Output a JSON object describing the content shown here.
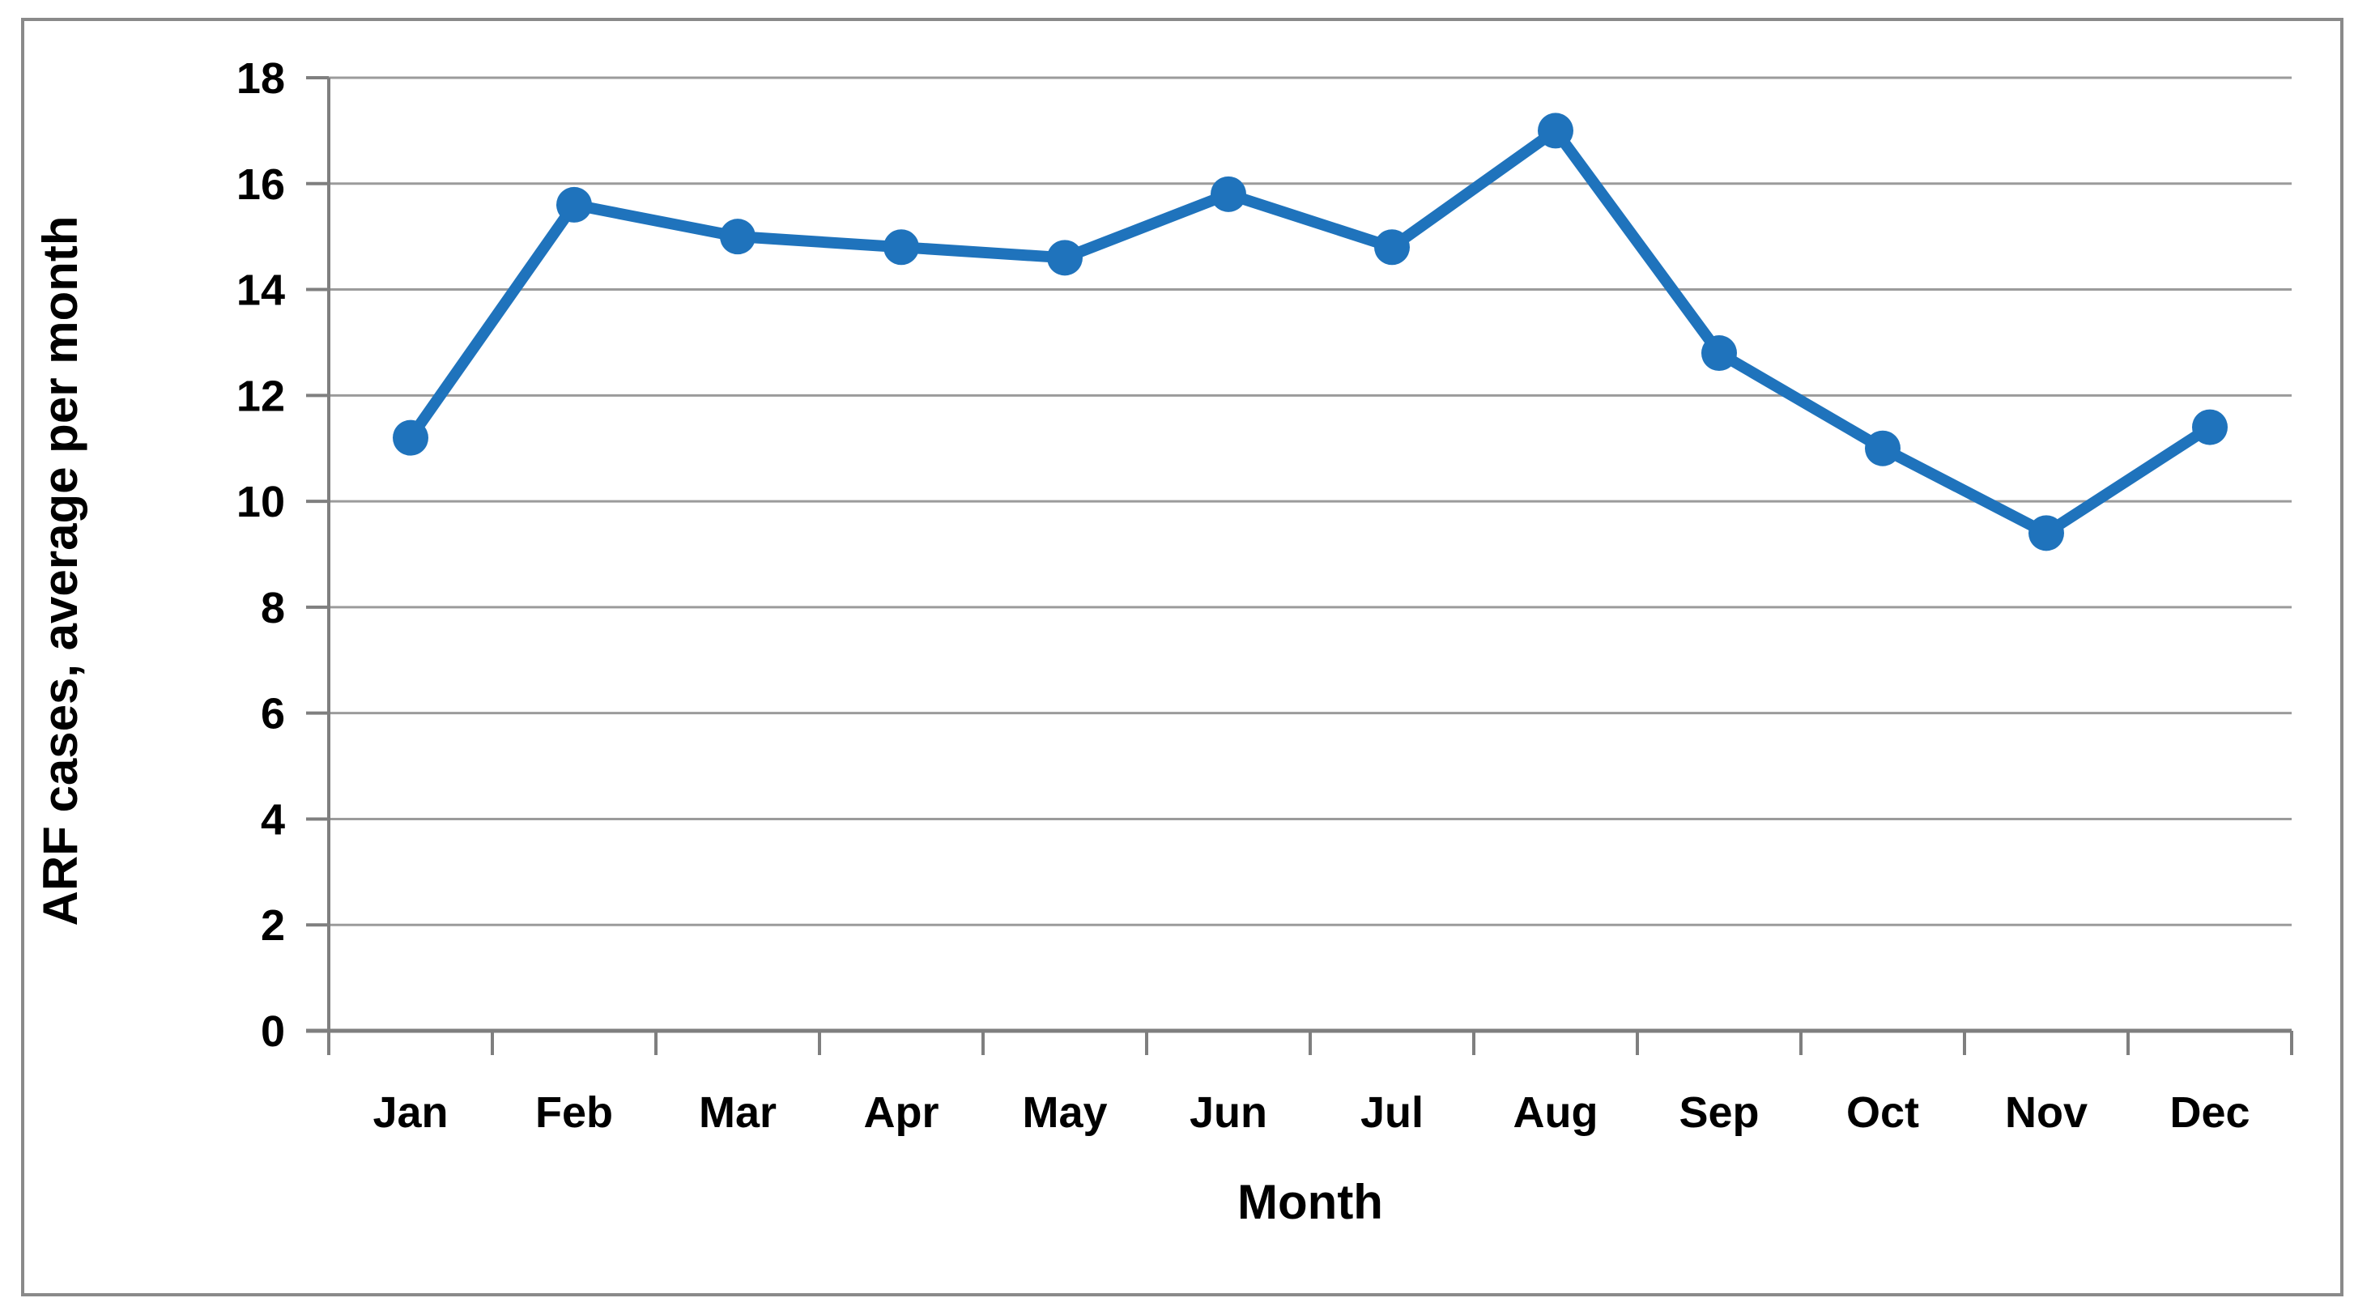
{
  "chart_data": {
    "type": "line",
    "title": "",
    "categories": [
      "Jan",
      "Feb",
      "Mar",
      "Apr",
      "May",
      "Jun",
      "Jul",
      "Aug",
      "Sep",
      "Oct",
      "Nov",
      "Dec"
    ],
    "values": [
      11.2,
      15.6,
      15.0,
      14.8,
      14.6,
      15.8,
      14.8,
      17.0,
      12.8,
      11.0,
      9.4,
      11.4
    ],
    "xlabel": "Month",
    "ylabel": "ARF cases, average per month",
    "ylim": [
      0,
      18
    ],
    "yticks": [
      0,
      2,
      4,
      6,
      8,
      10,
      12,
      14,
      16,
      18
    ],
    "grid": true,
    "legend": "none",
    "line_color": "#1F73BC",
    "marker_color": "#1F73BC",
    "marker_shape": "circle",
    "gridline_color": "#9B9B9B",
    "axis_color": "#7F7F7F",
    "text_color": "#000000",
    "frame_border_color": "#8A8A8A",
    "background_color": "#FFFFFF"
  }
}
